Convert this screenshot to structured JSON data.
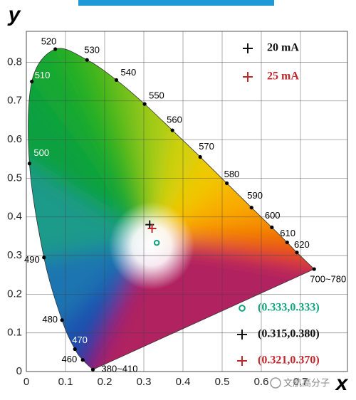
{
  "chart_data": {
    "type": "scatter",
    "x_label": "x",
    "y_label": "y",
    "xlim": [
      0,
      0.82
    ],
    "ylim": [
      0,
      0.88
    ],
    "xticks": [
      0,
      0.1,
      0.2,
      0.3,
      0.4,
      0.5,
      0.6,
      0.7
    ],
    "yticks": [
      0,
      0.1,
      0.2,
      0.3,
      0.4,
      0.5,
      0.6,
      0.7,
      0.8
    ],
    "grid": true,
    "locus": {
      "labels": [
        "380~410",
        "460",
        "470",
        "480",
        "490",
        "500",
        "510",
        "520",
        "530",
        "540",
        "550",
        "560",
        "570",
        "580",
        "590",
        "600",
        "610",
        "620",
        "700~780"
      ],
      "x": [
        0.17,
        0.144,
        0.124,
        0.091,
        0.045,
        0.008,
        0.014,
        0.074,
        0.155,
        0.23,
        0.302,
        0.373,
        0.444,
        0.512,
        0.575,
        0.627,
        0.666,
        0.691,
        0.735
      ],
      "y": [
        0.005,
        0.03,
        0.058,
        0.133,
        0.295,
        0.538,
        0.75,
        0.834,
        0.806,
        0.754,
        0.692,
        0.624,
        0.555,
        0.487,
        0.424,
        0.373,
        0.334,
        0.308,
        0.265
      ]
    },
    "series": [
      {
        "name": "20 mA",
        "color": "#111111",
        "marker": "plus",
        "x": [
          0.315
        ],
        "values": [
          0.38
        ],
        "value_labels": [
          "(0.315,0.380)"
        ]
      },
      {
        "name": "25 mA",
        "color": "#c0272d",
        "marker": "plus",
        "x": [
          0.321
        ],
        "values": [
          0.37
        ],
        "value_labels": [
          "(0.321,0.370)"
        ]
      },
      {
        "color": "#10a37f",
        "marker": "circle",
        "x": [
          0.333
        ],
        "values": [
          0.333
        ],
        "value_labels": [
          "(0.333,0.333)"
        ]
      }
    ],
    "watermark": "文航高分子"
  }
}
